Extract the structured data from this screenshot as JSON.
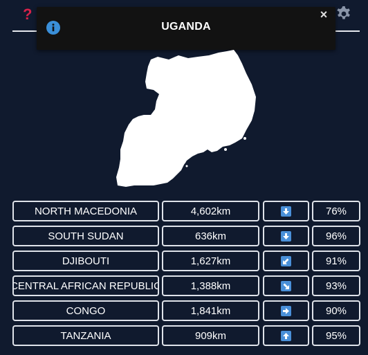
{
  "header": {
    "help_icon": "help-icon",
    "settings_icon": "gear-icon"
  },
  "toast": {
    "title": "UGANDA",
    "info_icon": "info-icon",
    "close_label": "×"
  },
  "map": {
    "icon": "uganda-silhouette",
    "fill": "#ffffff"
  },
  "colors": {
    "background": "#101a2e",
    "help_accent": "#d6224a",
    "arrow_tile": "#4a90d9"
  },
  "guesses": [
    {
      "country": "NORTH MACEDONIA",
      "distance": "4,602km",
      "direction": "down",
      "percent": "76%"
    },
    {
      "country": "SOUTH SUDAN",
      "distance": "636km",
      "direction": "down",
      "percent": "96%"
    },
    {
      "country": "DJIBOUTI",
      "distance": "1,627km",
      "direction": "down-left",
      "percent": "91%"
    },
    {
      "country": "CENTRAL AFRICAN REPUBLIC",
      "distance": "1,388km",
      "direction": "down-right",
      "percent": "93%"
    },
    {
      "country": "CONGO",
      "distance": "1,841km",
      "direction": "right",
      "percent": "90%"
    },
    {
      "country": "TANZANIA",
      "distance": "909km",
      "direction": "up",
      "percent": "95%"
    }
  ]
}
